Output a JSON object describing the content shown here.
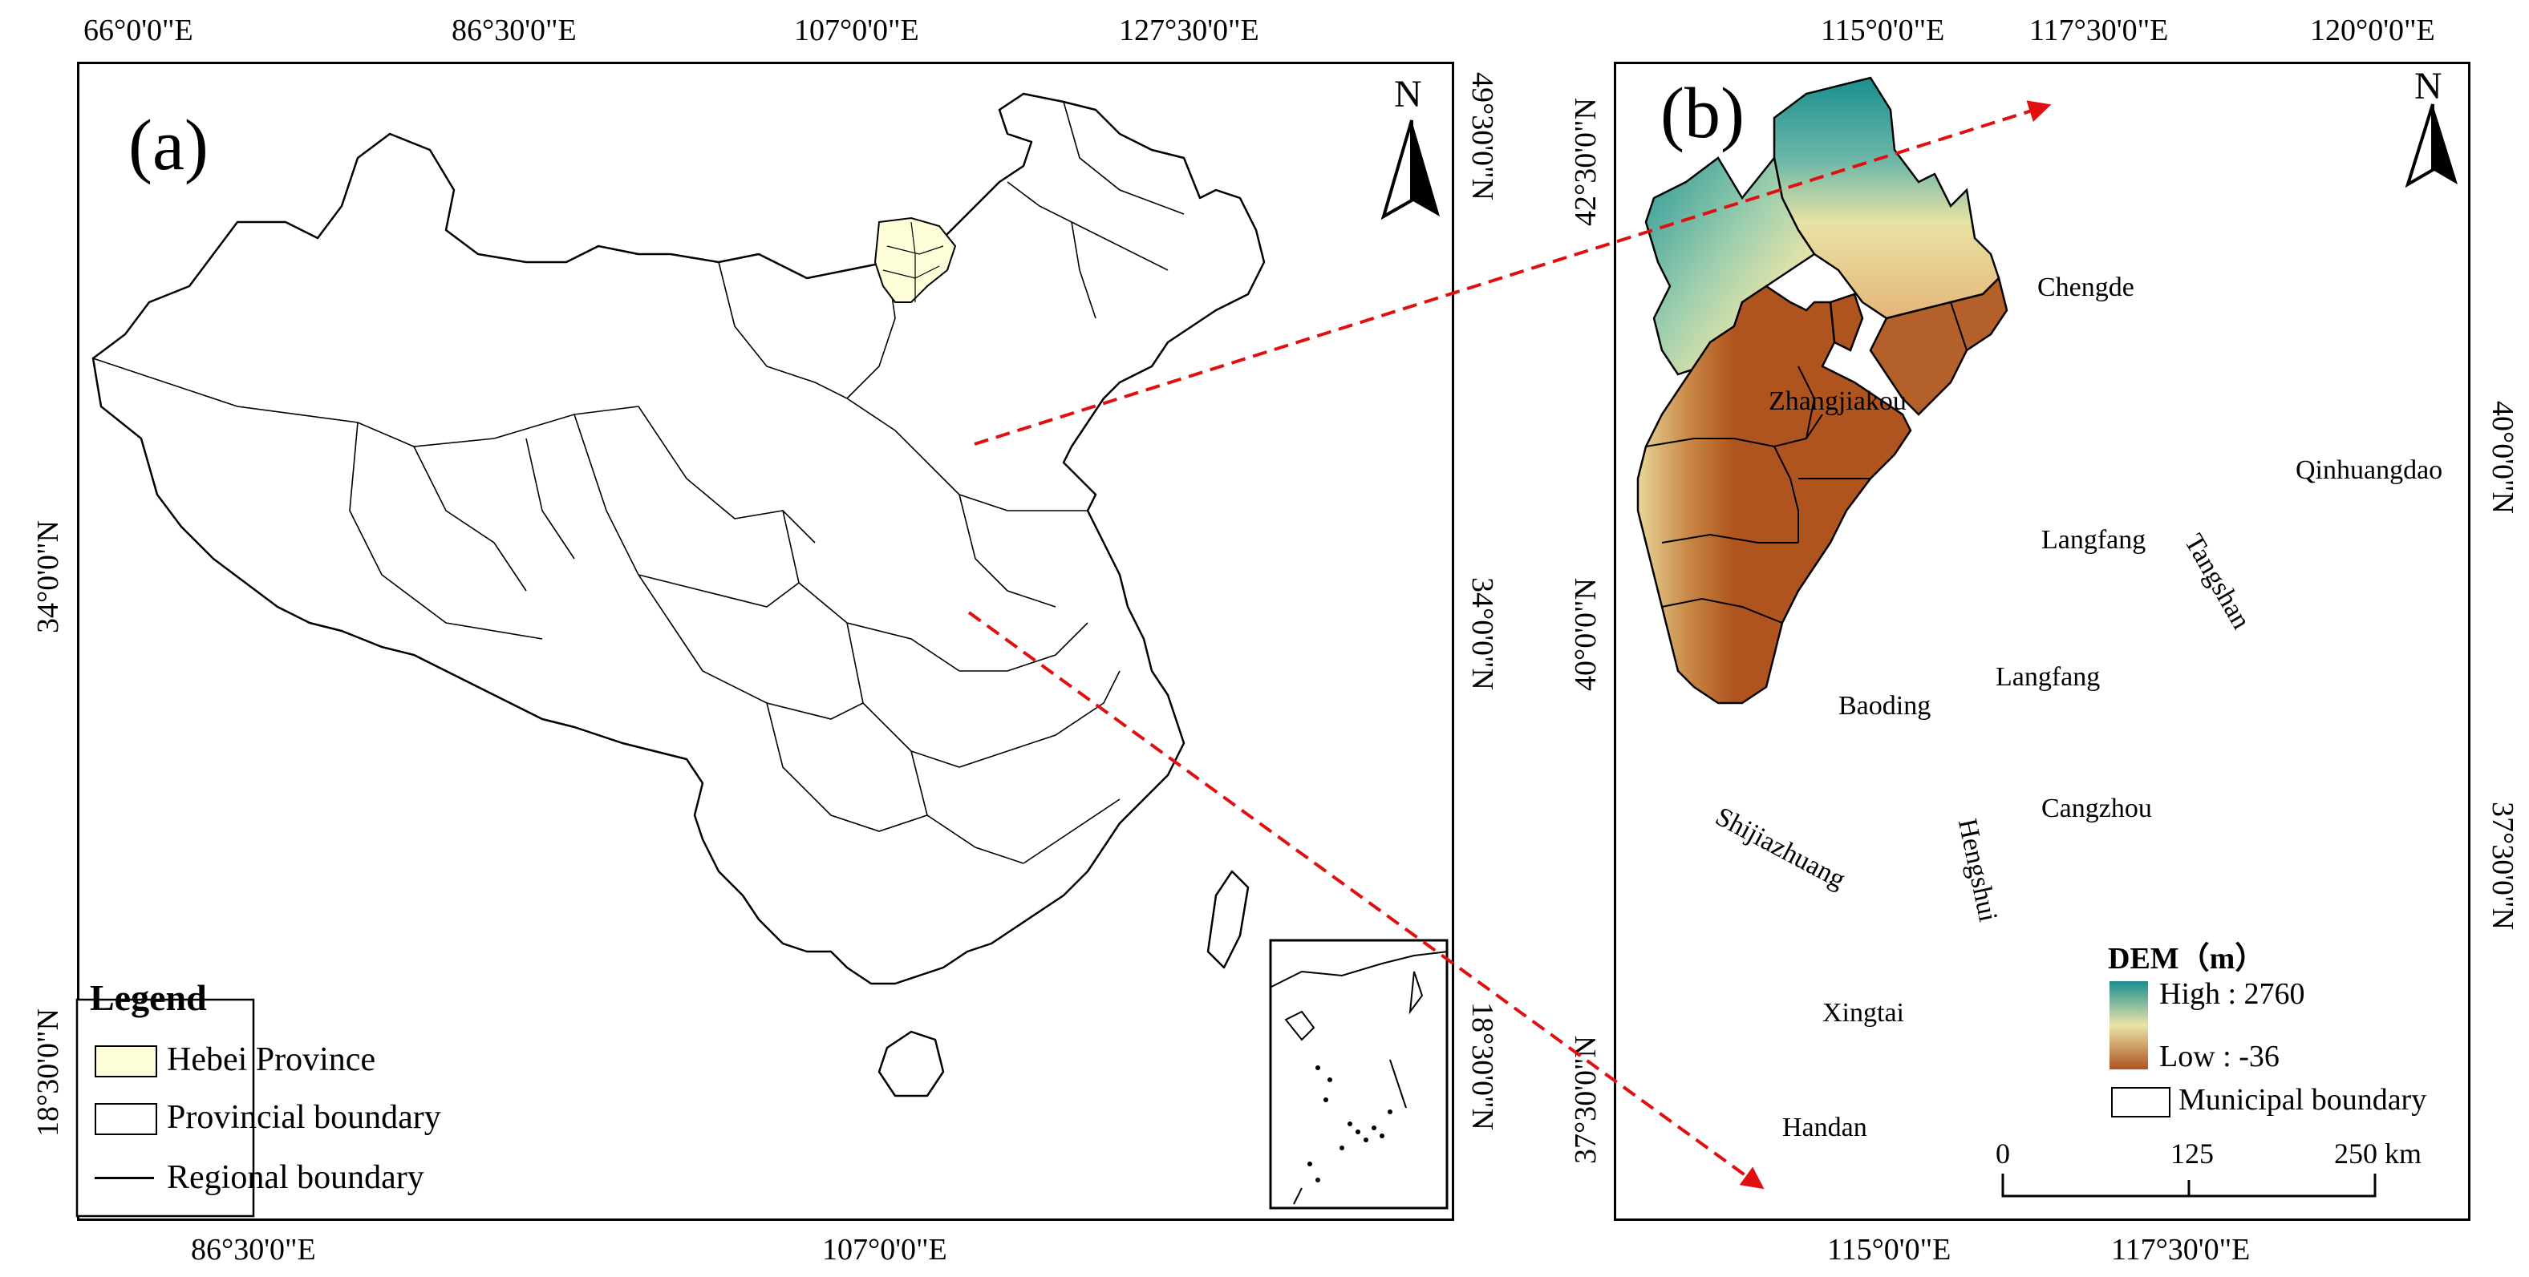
{
  "panel_a": {
    "label": "(a)",
    "north": "N",
    "top_ticks": [
      "66°0'0\"E",
      "86°30'0\"E",
      "107°0'0\"E",
      "127°30'0\"E"
    ],
    "bottom_ticks": [
      "86°30'0\"E",
      "107°0'0\"E"
    ],
    "left_ticks": [
      "34°0'0\"N",
      "18°30'0\"N"
    ],
    "right_ticks": [
      "49°30'0\"N",
      "34°0'0\"N",
      "18°30'0\"N"
    ],
    "legend": {
      "title": "Legend",
      "items": [
        "Hebei Province",
        "Provincial boundary",
        "Regional boundary"
      ],
      "hebei_color": "#fdfdd8"
    }
  },
  "panel_b": {
    "label": "(b)",
    "north": "N",
    "top_ticks": [
      "115°0'0\"E",
      "117°30'0\"E",
      "120°0'0\"E"
    ],
    "bottom_ticks": [
      "115°0'0\"E",
      "117°30'0\"E"
    ],
    "left_ticks": [
      "42°30'0\"N",
      "40°0'0\"N",
      "37°30'0\"N"
    ],
    "right_ticks": [
      "40°0'0\"N",
      "37°30'0\"N"
    ],
    "cities": [
      "Chengde",
      "Zhangjiakou",
      "Qinhuangdao",
      "Tangshan",
      "Langfang",
      "Langfang",
      "Baoding",
      "Cangzhou",
      "Shijiazhuang",
      "Hengshui",
      "Xingtai",
      "Handan"
    ],
    "dem_legend": {
      "title": "DEM（m）",
      "high": "High : 2760",
      "low": "Low : -36",
      "boundary": "Municipal boundary",
      "high_color": "#1a8f8f",
      "low_color": "#b0541f"
    },
    "scale": [
      "0",
      "125",
      "250 km"
    ]
  },
  "colors": {
    "arrow": "#e01010"
  }
}
